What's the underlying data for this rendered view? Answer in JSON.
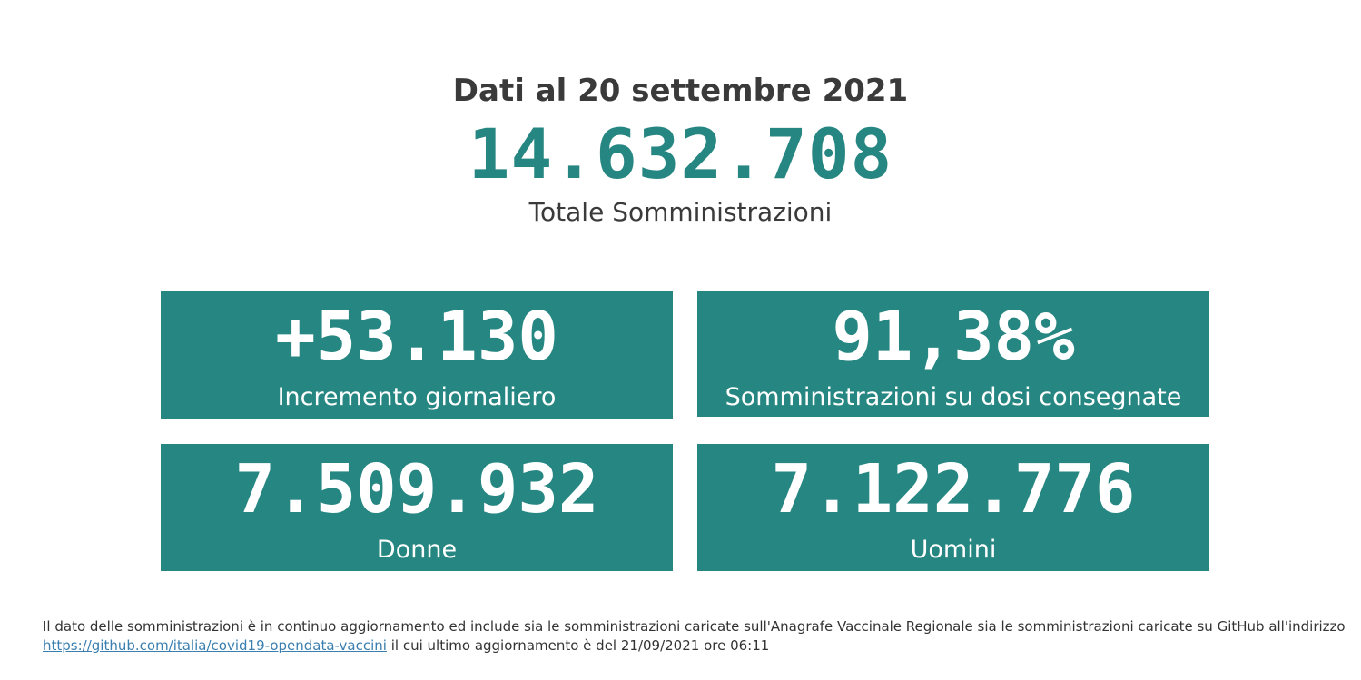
{
  "header": {
    "date_title": "Dati al 20 settembre 2021",
    "total_value": "14.632.708",
    "total_label": "Totale Somministrazioni"
  },
  "cards": {
    "increment": {
      "value": "+53.130",
      "label": "Incremento giornaliero"
    },
    "ratio": {
      "value": "91,38%",
      "label": "Somministrazioni su dosi consegnate"
    },
    "women": {
      "value": "7.509.932",
      "label": "Donne"
    },
    "men": {
      "value": "7.122.776",
      "label": "Uomini"
    }
  },
  "footnote": {
    "text_before": "Il dato delle somministrazioni è in continuo aggiornamento ed include sia le somministrazioni caricate sull'Anagrafe Vaccinale Regionale sia le somministrazioni caricate su GitHub all'indirizzo",
    "link_text": "https://github.com/italia/covid19-opendata-vaccini",
    "text_after": "il cui ultimo aggiornamento è del 21/09/2021 ore 06:11"
  },
  "colors": {
    "accent": "#268681",
    "text": "#333333",
    "link": "#3a7fb0"
  }
}
